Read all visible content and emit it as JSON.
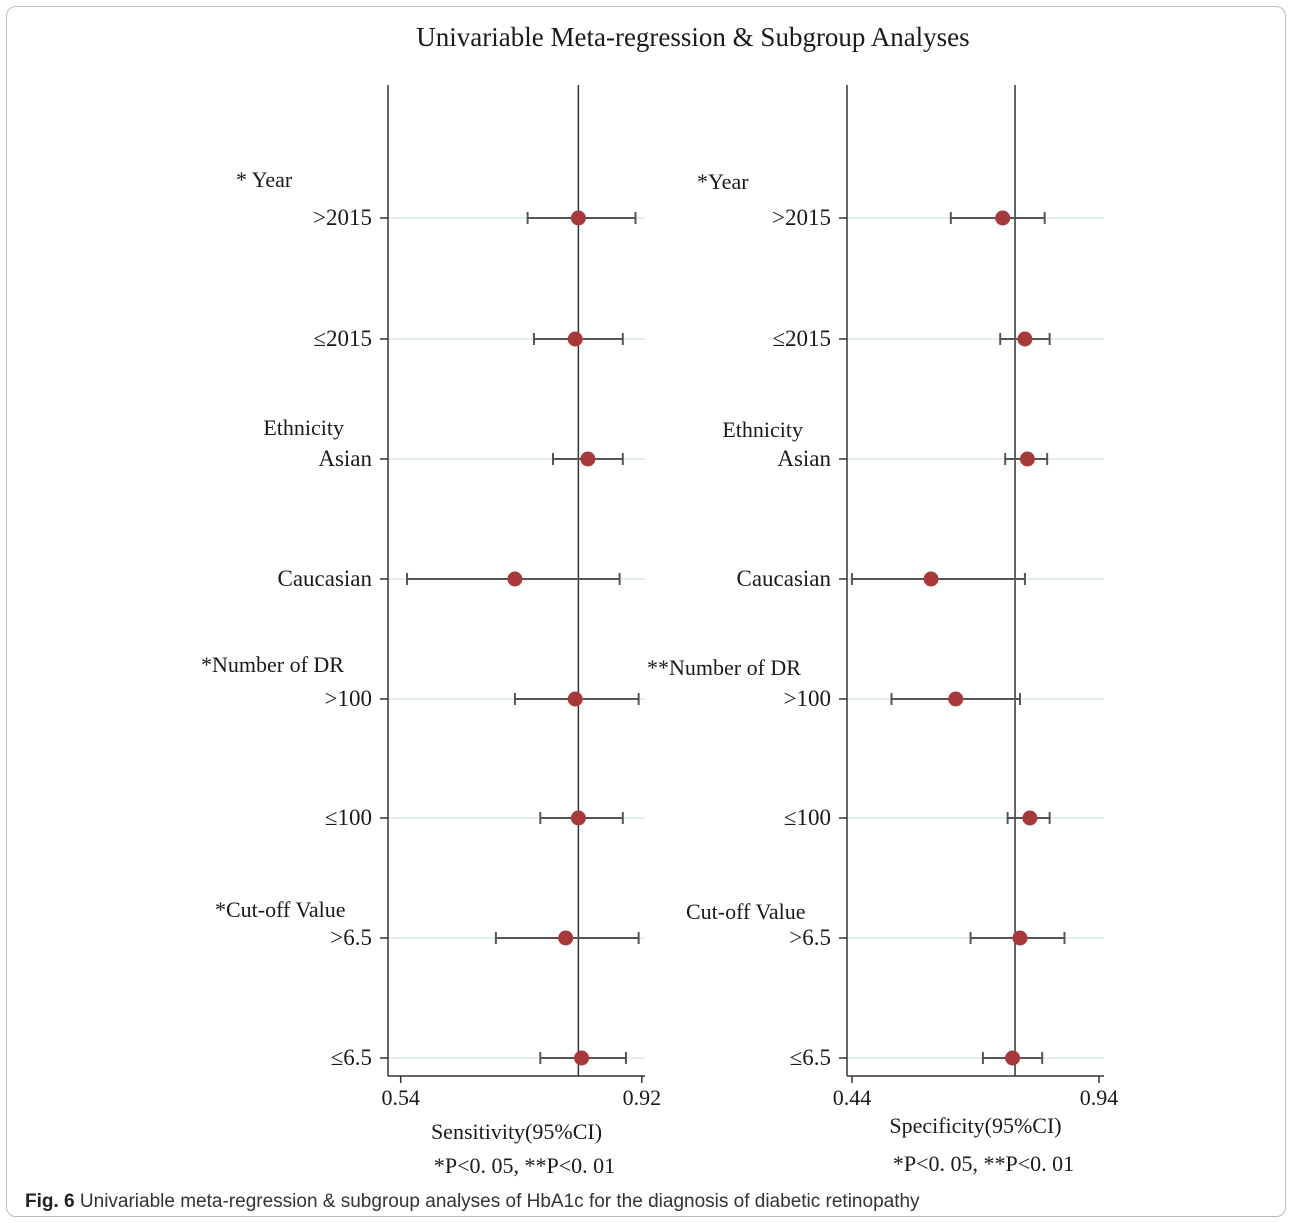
{
  "figure_title": "Univariable Meta-regression & Subgroup Analyses",
  "caption": {
    "label": "Fig. 6",
    "text": "Univariable meta-regression & subgroup analyses of HbA1c for the diagnosis of diabetic retinopathy"
  },
  "colors": {
    "point": "#a8393b",
    "ci_line": "#555555",
    "axis": "#333333",
    "gridline": "#e3eef0"
  },
  "chart_data": [
    {
      "type": "forest",
      "panel": "sensitivity",
      "title": "",
      "xlabel": "Sensitivity(95%CI)",
      "footnote": "*P<0. 05, **P<0. 01",
      "xlim": [
        0.52,
        0.925
      ],
      "xticks": [
        0.54,
        0.92
      ],
      "xtick_labels": [
        "0.54",
        "0.92"
      ],
      "reference_line": 0.82,
      "group_labels": [
        "* Year",
        "Ethnicity",
        "*Number of DR",
        "*Cut-off Value"
      ],
      "rows": [
        {
          "label": ">2015",
          "estimate": 0.82,
          "lower": 0.74,
          "upper": 0.91
        },
        {
          "label": "≤2015",
          "estimate": 0.815,
          "lower": 0.75,
          "upper": 0.89
        },
        {
          "label": "Asian",
          "estimate": 0.835,
          "lower": 0.78,
          "upper": 0.89
        },
        {
          "label": "Caucasian",
          "estimate": 0.72,
          "lower": 0.55,
          "upper": 0.885
        },
        {
          "label": ">100",
          "estimate": 0.815,
          "lower": 0.72,
          "upper": 0.915
        },
        {
          "label": "≤100",
          "estimate": 0.82,
          "lower": 0.76,
          "upper": 0.89
        },
        {
          "label": ">6.5",
          "estimate": 0.8,
          "lower": 0.69,
          "upper": 0.915
        },
        {
          "label": "≤6.5",
          "estimate": 0.825,
          "lower": 0.76,
          "upper": 0.895
        }
      ]
    },
    {
      "type": "forest",
      "panel": "specificity",
      "title": "",
      "xlabel": "Specificity(95%CI)",
      "footnote": "*P<0. 05, **P<0. 01",
      "xlim": [
        0.43,
        0.95
      ],
      "xticks": [
        0.44,
        0.94
      ],
      "xtick_labels": [
        "0.44",
        "0.94"
      ],
      "reference_line": 0.77,
      "group_labels": [
        "*Year",
        "Ethnicity",
        "**Number of DR",
        "Cut-off Value"
      ],
      "rows": [
        {
          "label": ">2015",
          "estimate": 0.745,
          "lower": 0.64,
          "upper": 0.83
        },
        {
          "label": "≤2015",
          "estimate": 0.79,
          "lower": 0.74,
          "upper": 0.84
        },
        {
          "label": "Asian",
          "estimate": 0.795,
          "lower": 0.75,
          "upper": 0.835
        },
        {
          "label": "Caucasian",
          "estimate": 0.6,
          "lower": 0.44,
          "upper": 0.79
        },
        {
          "label": ">100",
          "estimate": 0.65,
          "lower": 0.52,
          "upper": 0.78
        },
        {
          "label": "≤100",
          "estimate": 0.8,
          "lower": 0.755,
          "upper": 0.84
        },
        {
          "label": ">6.5",
          "estimate": 0.78,
          "lower": 0.68,
          "upper": 0.87
        },
        {
          "label": "≤6.5",
          "estimate": 0.765,
          "lower": 0.705,
          "upper": 0.825
        }
      ]
    }
  ]
}
